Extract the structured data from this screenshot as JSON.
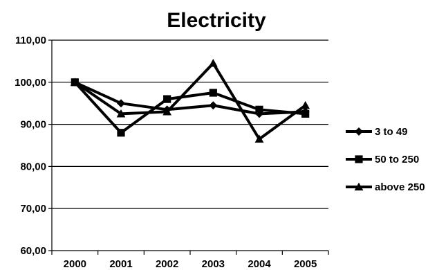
{
  "chart_data": {
    "type": "line",
    "title": "Electricity",
    "xlabel": "",
    "ylabel": "",
    "x": [
      "2000",
      "2001",
      "2002",
      "2003",
      "2004",
      "2005"
    ],
    "y_tick_labels": [
      "110,00",
      "100,00",
      "90,00",
      "80,00",
      "70,00",
      "60,00"
    ],
    "ylim": [
      60,
      110
    ],
    "grid": true,
    "legend_position": "right",
    "series": [
      {
        "name": "3 to 49",
        "marker": "diamond",
        "values": [
          100,
          95,
          93.5,
          94.5,
          92.5,
          93
        ]
      },
      {
        "name": "50 to 250",
        "marker": "square",
        "values": [
          100,
          88,
          96,
          97.5,
          93.5,
          92.5
        ]
      },
      {
        "name": "above 250",
        "marker": "triangle",
        "values": [
          100,
          92.5,
          93,
          104.5,
          86.5,
          94.5
        ]
      }
    ],
    "colors": {
      "line": "#000000",
      "grid": "#000000",
      "background": "#ffffff"
    }
  }
}
